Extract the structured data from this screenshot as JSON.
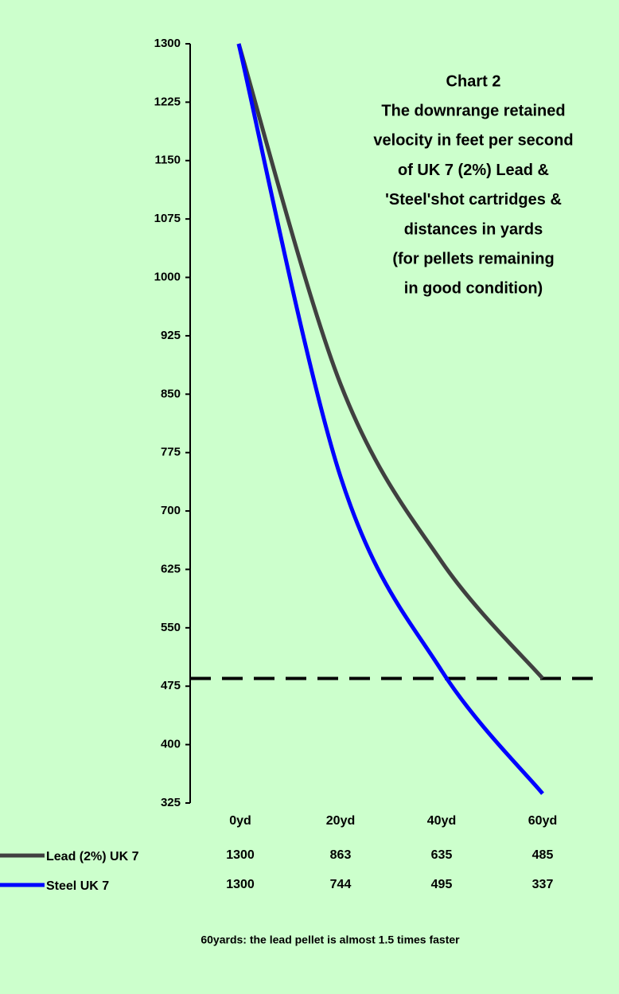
{
  "chart_data": {
    "type": "line",
    "title": [
      "Chart 2",
      "The downrange retained",
      "velocity in feet per second",
      "of UK 7 (2%) Lead &",
      "'Steel'shot cartridges &",
      "distances in yards",
      "(for pellets remaining",
      "in good condition)"
    ],
    "categories": [
      "0yd",
      "20yd",
      "40yd",
      "60yd"
    ],
    "series": [
      {
        "name": "Lead (2%) UK 7",
        "color": "#404040",
        "values": [
          1300,
          863,
          635,
          485
        ]
      },
      {
        "name": "Steel UK 7",
        "color": "#0000ff",
        "values": [
          1300,
          744,
          495,
          337
        ]
      }
    ],
    "ylim": [
      325,
      1300
    ],
    "yticks": [
      325,
      400,
      475,
      550,
      625,
      700,
      775,
      850,
      925,
      1000,
      1075,
      1150,
      1225,
      1300
    ],
    "reference_line": 485,
    "annotation": "60yards: the lead pellet is almost 1.5 times faster"
  }
}
